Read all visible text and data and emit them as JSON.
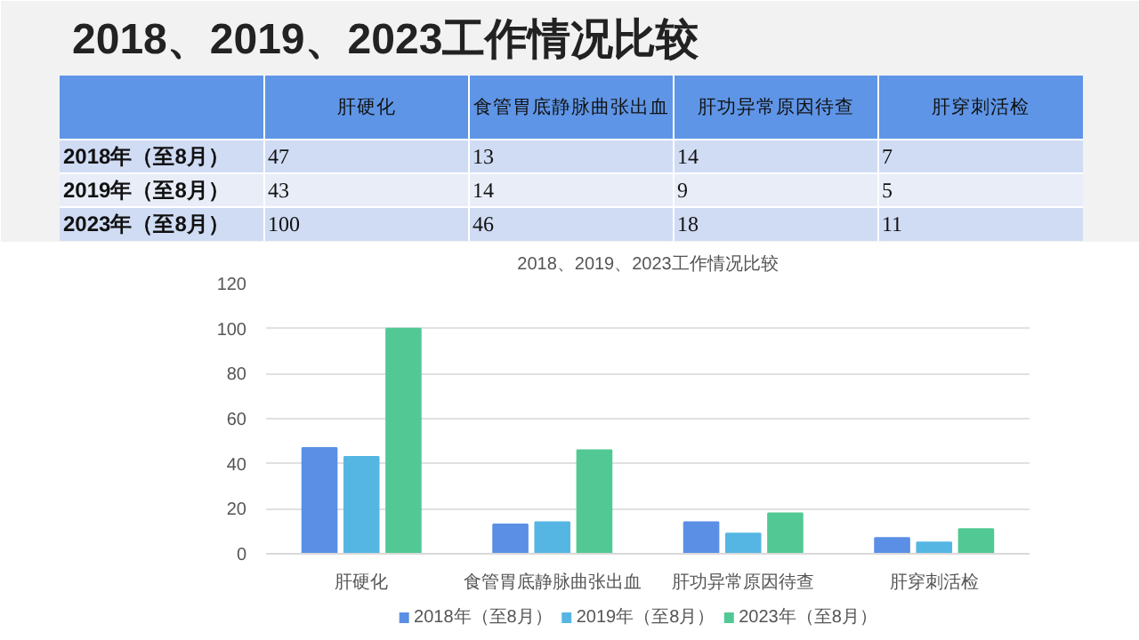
{
  "chart_data": {
    "type": "bar",
    "title": "2018、2019、2023工作情况比较",
    "subtitle": "2018、2019、2023工作情况比较",
    "categories": [
      "肝硬化",
      "食管胃底静脉曲张出血",
      "肝功异常原因待查",
      "肝穿刺活检"
    ],
    "series": [
      {
        "name": "2018年（至8月）",
        "color": "#5b8fe6",
        "values": [
          47,
          13,
          14,
          7
        ]
      },
      {
        "name": "2019年（至8月）",
        "color": "#56b6e3",
        "values": [
          43,
          14,
          9,
          5
        ]
      },
      {
        "name": "2023年（至8月）",
        "color": "#52c994",
        "values": [
          100,
          46,
          18,
          11
        ]
      }
    ],
    "ylim": [
      0,
      120
    ],
    "yticks": [
      0,
      20,
      40,
      60,
      80,
      100,
      120
    ],
    "grid": "y",
    "legend": "bottom",
    "data_labels": true
  }
}
